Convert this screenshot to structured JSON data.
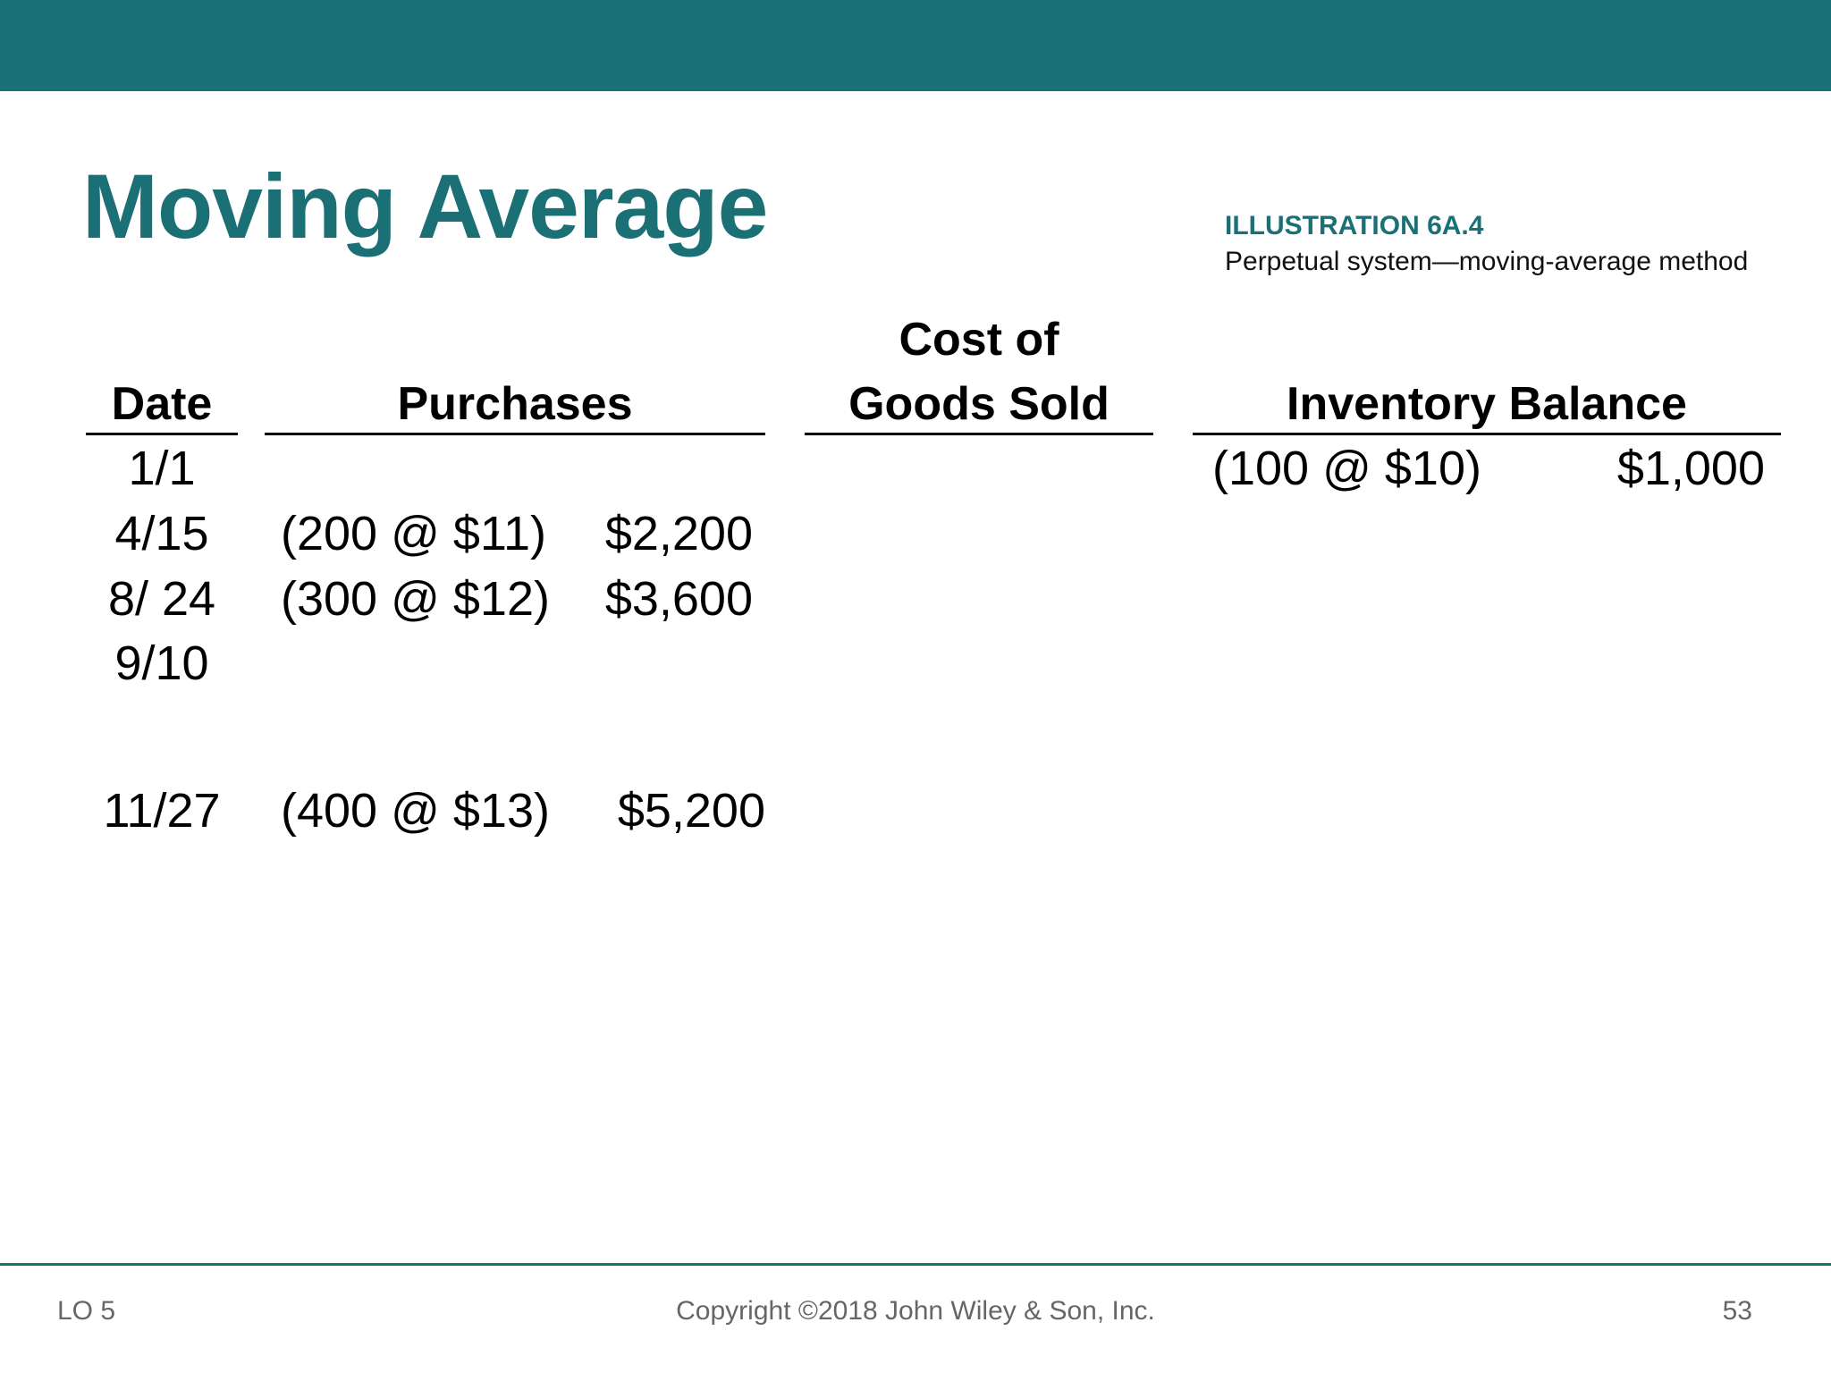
{
  "slide": {
    "title": "Moving Average",
    "illustration_label": "ILLUSTRATION 6A.4",
    "illustration_caption": "Perpetual system—moving-average method"
  },
  "table": {
    "headers": {
      "date": "Date",
      "purchases": "Purchases",
      "cogs_line1": "Cost of",
      "cogs_line2": "Goods Sold",
      "inventory": "Inventory Balance"
    },
    "rows": [
      {
        "date": "1/1",
        "purchase_units": "",
        "purchase_amount": "",
        "inventory_units": "(100 @ $10)",
        "inventory_amount": "$1,000"
      },
      {
        "date": "4/15",
        "purchase_units": "(200 @ $11)",
        "purchase_amount": "$2,200",
        "inventory_units": "",
        "inventory_amount": ""
      },
      {
        "date": "8/ 24",
        "purchase_units": "(300 @ $12)",
        "purchase_amount": "$3,600",
        "inventory_units": "",
        "inventory_amount": ""
      },
      {
        "date": "9/10",
        "purchase_units": "",
        "purchase_amount": "",
        "inventory_units": "",
        "inventory_amount": ""
      },
      {
        "date": "11/27",
        "purchase_units": "(400 @ $13)",
        "purchase_amount": "$5,200",
        "inventory_units": "",
        "inventory_amount": ""
      }
    ]
  },
  "footer": {
    "left": "LO 5",
    "center": "Copyright ©2018 John Wiley & Son, Inc.",
    "right": "53"
  },
  "colors": {
    "accent": "#1b7076"
  }
}
